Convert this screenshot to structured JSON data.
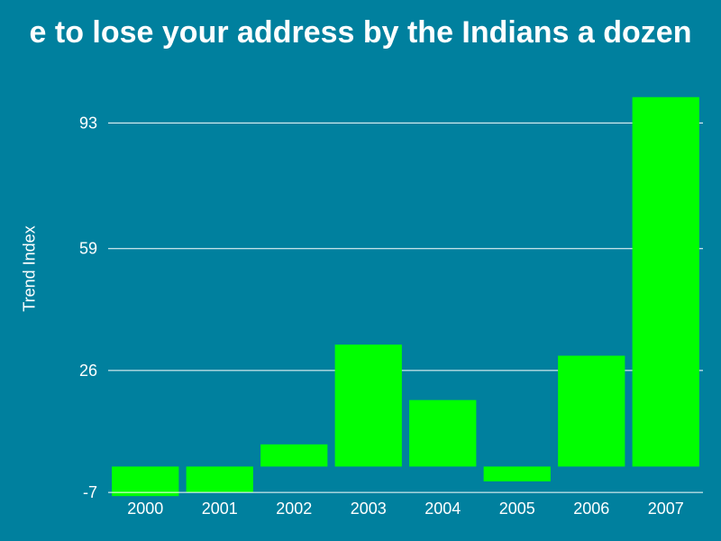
{
  "colors": {
    "background": "#00809e",
    "bar": "#00ff00",
    "text": "#ffffff",
    "grid": "#ffffff"
  },
  "chart_data": {
    "type": "bar",
    "title": "e to lose your address by the Indians a dozen",
    "xlabel": "",
    "ylabel": "Trend Index",
    "categories": [
      "2000",
      "2001",
      "2002",
      "2003",
      "2004",
      "2005",
      "2006",
      "2007"
    ],
    "values": [
      -8,
      -7,
      6,
      33,
      18,
      -4,
      30,
      100
    ],
    "ylim": [
      -7,
      100
    ],
    "yticks": [
      -7,
      26,
      59,
      93
    ],
    "grid": true,
    "legend": "none"
  }
}
